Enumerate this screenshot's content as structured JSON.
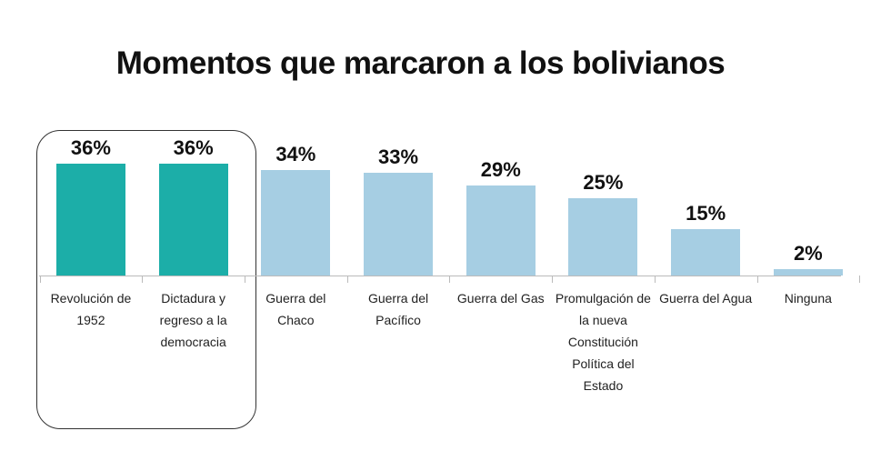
{
  "chart_data": {
    "type": "bar",
    "title": "Momentos que marcaron a los bolivianos",
    "categories": [
      "Revolución de 1952",
      "Dictadura y regreso a la democracia",
      "Guerra del Chaco",
      "Guerra del Pacífico",
      "Guerra del Gas",
      "Promulgación de la nueva Constitución Política del Estado",
      "Guerra del Agua",
      "Ninguna"
    ],
    "values": [
      36,
      36,
      34,
      33,
      29,
      25,
      15,
      2
    ],
    "value_labels": [
      "36%",
      "36%",
      "34%",
      "33%",
      "29%",
      "25%",
      "15%",
      "2%"
    ],
    "colors": [
      "#1caea8",
      "#1caea8",
      "#a6cee3",
      "#a6cee3",
      "#a6cee3",
      "#a6cee3",
      "#a6cee3",
      "#a6cee3"
    ]
  }
}
